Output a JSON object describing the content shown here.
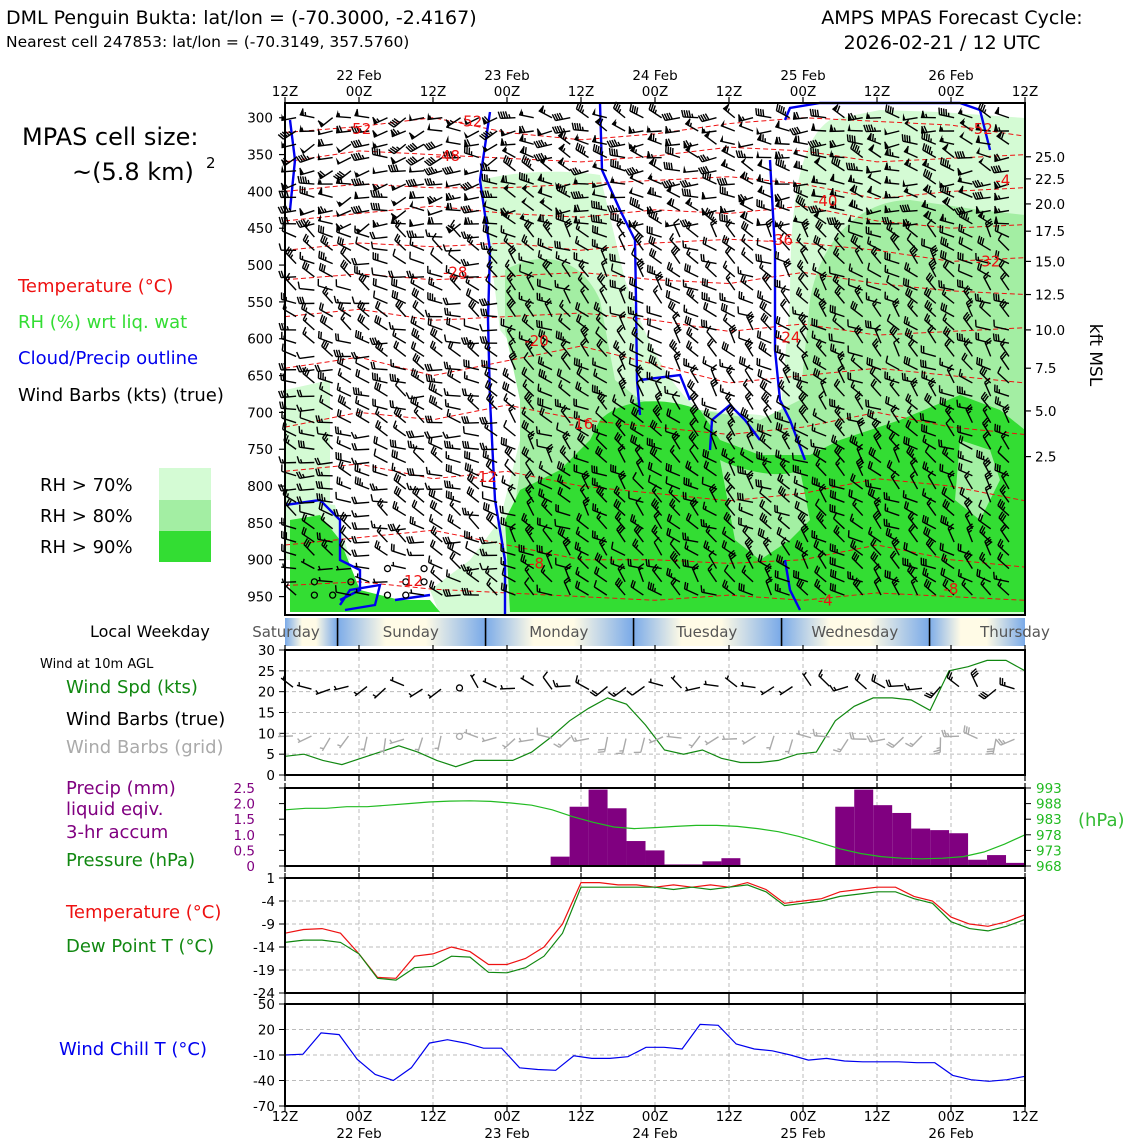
{
  "header": {
    "left_title": "DML Penguin Bukta: lat/lon = (-70.3000, -2.4167)",
    "left_subtitle": "Nearest cell 247853: lat/lon = (-70.3149, 357.5760)",
    "right_title_1": "AMPS MPAS Forecast Cycle:",
    "right_title_2": "2026-02-21 / 12 UTC"
  },
  "legend": {
    "cell_size_1": "MPAS cell size:",
    "cell_size_2": "~(5.8 km)",
    "cell_size_sup": "2",
    "temperature": "Temperature (°C)",
    "rh": "RH (%) wrt liq. wat",
    "cloud": "Cloud/Precip outline",
    "barbs": "Wind Barbs (kts) (true)",
    "rh70": "RH > 70%",
    "rh80": "RH > 80%",
    "rh90": "RH > 90%",
    "colors": {
      "temperature": "#ee1111",
      "rh": "#33dd33",
      "cloud": "#0000ee",
      "rh70": "#d4fbd4",
      "rh80": "#a3eea3",
      "rh90": "#33dd33"
    }
  },
  "weekday_label": "Local Weekday",
  "side_labels": {
    "wind": {
      "title": "Wind at 10m AGL",
      "spd": "Wind Spd (kts)",
      "barbs_true": "Wind Barbs (true)",
      "barbs_grid": "Wind Barbs (grid)"
    },
    "precip": [
      "Precip (mm)",
      "liquid eqiv.",
      "3-hr accum"
    ],
    "pressure": "Pressure (hPa)",
    "pressure_unit": "(hPa)",
    "temperature": "Temperature (°C)",
    "dewpoint": "Dew Point T (°C)",
    "windchill": "Wind Chill T (°C)"
  },
  "chart_data": [
    {
      "type": "contour",
      "name": "cross-section",
      "x_ticks": [
        "12Z",
        "00Z",
        "12Z",
        "00Z",
        "12Z",
        "00Z",
        "12Z",
        "00Z",
        "12Z",
        "00Z",
        "12Z"
      ],
      "x_dates": [
        "22 Feb",
        "23 Feb",
        "24 Feb",
        "25 Feb",
        "26 Feb"
      ],
      "ylabel_right": "kft MSL",
      "pressure_ticks": [
        300,
        350,
        400,
        450,
        500,
        550,
        600,
        650,
        700,
        750,
        800,
        850,
        900,
        950
      ],
      "kft_ticks": [
        "25.0",
        "22.5",
        "20.0",
        "17.5",
        "15.0",
        "12.5",
        "10.0",
        "7.5",
        "5.0",
        "2.5"
      ],
      "kft_ticks_pressure": [
        353,
        383,
        417,
        454,
        495,
        540,
        588,
        640,
        698,
        760
      ],
      "temperature_labels": [
        {
          "t": 1.0,
          "p": 315,
          "v": "-52"
        },
        {
          "t": 2.5,
          "p": 305,
          "v": "-52"
        },
        {
          "t": 2.2,
          "p": 352,
          "v": "-48"
        },
        {
          "t": 9.4,
          "p": 315,
          "v": "-52"
        },
        {
          "t": 7.3,
          "p": 413,
          "v": "-40"
        },
        {
          "t": 6.7,
          "p": 466,
          "v": "-36"
        },
        {
          "t": 9.5,
          "p": 495,
          "v": "-32"
        },
        {
          "t": 2.3,
          "p": 510,
          "v": "-28"
        },
        {
          "t": 6.8,
          "p": 598,
          "v": "-24"
        },
        {
          "t": 3.4,
          "p": 603,
          "v": "-20"
        },
        {
          "t": 4.0,
          "p": 716,
          "v": "-16"
        },
        {
          "t": 2.7,
          "p": 788,
          "v": "-12"
        },
        {
          "t": 1.7,
          "p": 929,
          "v": "-12"
        },
        {
          "t": 3.4,
          "p": 905,
          "v": "-8"
        },
        {
          "t": 7.3,
          "p": 955,
          "v": "-4"
        },
        {
          "t": 9.7,
          "p": 385,
          "v": "-4"
        },
        {
          "t": 9.0,
          "p": 940,
          "v": "-8"
        }
      ],
      "weekdays": [
        "Saturday",
        "Sunday",
        "Monday",
        "Tuesday",
        "Wednesday",
        "Thursday"
      ]
    },
    {
      "type": "line",
      "name": "wind-10m",
      "ylim": [
        0,
        30
      ],
      "y_ticks": [
        0,
        5,
        10,
        15,
        20,
        25,
        30
      ],
      "speed": [
        4.5,
        5,
        3.5,
        2.5,
        4,
        5.5,
        7,
        5.5,
        3.5,
        2,
        3.5,
        3.5,
        3.5,
        5.5,
        9,
        13,
        16,
        18.5,
        17,
        12,
        6,
        5,
        6,
        4,
        3,
        3,
        3.5,
        5,
        5.5,
        13,
        16.5,
        18.5,
        18.5,
        18,
        15.5,
        25,
        26,
        27.5,
        27.5,
        25
      ]
    },
    {
      "type": "bar",
      "name": "precip-pressure",
      "ylim": [
        0,
        2.5
      ],
      "y_ticks": [
        "0",
        "0.5",
        "1.0",
        "1.5",
        "2.0",
        "2.5"
      ],
      "pressure_ticks": [
        "968",
        "973",
        "978",
        "983",
        "988",
        "993"
      ],
      "pressure_lim": [
        968,
        993
      ],
      "precip": [
        0,
        0,
        0,
        0,
        0,
        0,
        0,
        0,
        0,
        0,
        0,
        0,
        0,
        0,
        0.3,
        1.9,
        2.45,
        1.85,
        0.8,
        0.5,
        0.05,
        0.05,
        0.15,
        0.25,
        0,
        0,
        0,
        0,
        0,
        1.9,
        2.45,
        1.95,
        1.7,
        1.2,
        1.15,
        1.05,
        0.2,
        0.35,
        0.1
      ],
      "pressure": [
        986,
        986.5,
        986.5,
        987,
        987,
        987.5,
        988,
        988.5,
        988.8,
        988.9,
        988.7,
        988.2,
        987.5,
        986,
        983.8,
        982,
        980.5,
        980,
        980.3,
        980.7,
        981,
        981,
        980.7,
        980,
        979,
        977.5,
        975.5,
        973.5,
        972,
        971,
        970.5,
        970.3,
        970.5,
        971,
        972.5,
        975,
        978
      ]
    },
    {
      "type": "line",
      "name": "temperature",
      "ylim": [
        -24,
        1
      ],
      "y_ticks": [
        1,
        -4,
        -9,
        -14,
        -19,
        -24
      ],
      "temperature": [
        -11,
        -10.2,
        -10,
        -11,
        -15.5,
        -20.6,
        -20.8,
        -16,
        -15.5,
        -14,
        -15,
        -17.8,
        -17.8,
        -16.5,
        -14,
        -9,
        0,
        0,
        -0.5,
        -0.5,
        -1,
        -0.5,
        -1,
        -0.5,
        -1,
        0,
        -1.5,
        -4.5,
        -4,
        -3.5,
        -2,
        -1.5,
        -1,
        -1,
        -3,
        -4,
        -7.5,
        -9,
        -9.5,
        -8.5,
        -7
      ],
      "dewpoint": [
        -13,
        -12.5,
        -12.5,
        -13,
        -15.5,
        -20.8,
        -21.2,
        -18.5,
        -18.2,
        -16,
        -16.2,
        -19.5,
        -19.6,
        -18.5,
        -16,
        -11,
        -1,
        -1,
        -1,
        -1,
        -1,
        -1.5,
        -1,
        -1.5,
        -1,
        -0.5,
        -2,
        -5,
        -4.5,
        -4,
        -3,
        -2.5,
        -2,
        -2,
        -3.5,
        -4.5,
        -8.5,
        -10,
        -10.5,
        -9.5,
        -8
      ]
    },
    {
      "type": "line",
      "name": "wind-chill",
      "ylim": [
        -70,
        50
      ],
      "y_ticks": [
        50,
        20,
        -10,
        -40,
        -70
      ],
      "windchill": [
        -10,
        -9,
        16,
        14,
        -15,
        -33,
        -40,
        -25,
        4,
        8,
        4,
        -2,
        -2,
        -25,
        -27,
        -28,
        -11,
        -14,
        -14,
        -12,
        -1,
        -1,
        -3,
        26,
        25,
        3,
        -3,
        -5,
        -10,
        -16,
        -14,
        -17,
        -18,
        -18,
        -18,
        -19,
        -19,
        -34,
        -39,
        -41,
        -39,
        -35
      ]
    }
  ]
}
